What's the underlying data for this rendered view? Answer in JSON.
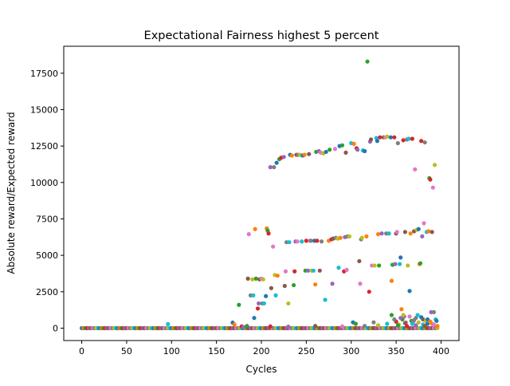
{
  "chart_data": {
    "type": "scatter",
    "title": "Expectational Fairness highest 5 percent",
    "xlabel": "Cycles",
    "ylabel": "Absolute reward/Expected reward",
    "xlim": [
      -20,
      420
    ],
    "ylim": [
      -850,
      19350
    ],
    "xticks": [
      0,
      50,
      100,
      150,
      200,
      250,
      300,
      350,
      400
    ],
    "yticks": [
      0,
      2500,
      5000,
      7500,
      10000,
      12500,
      15000,
      17500
    ],
    "xtick_labels": [
      "0",
      "50",
      "100",
      "150",
      "200",
      "250",
      "300",
      "350",
      "400"
    ],
    "ytick_labels": [
      "0",
      "2500",
      "5000",
      "7500",
      "10000",
      "12500",
      "15000",
      "17500"
    ],
    "grid": false,
    "legend": "none",
    "palette": [
      "#1f77b4",
      "#ff7f0e",
      "#2ca02c",
      "#d62728",
      "#9467bd",
      "#8c564b",
      "#e377c2",
      "#7f7f7f",
      "#bcbd22",
      "#17becf"
    ],
    "baseline": {
      "x_start": 0,
      "x_end": 396,
      "x_step": 2,
      "y": 0
    },
    "points": [
      [
        96,
        280
      ],
      [
        168,
        380
      ],
      [
        170,
        250
      ],
      [
        175,
        1600
      ],
      [
        178,
        120
      ],
      [
        180,
        80
      ],
      [
        185,
        3400
      ],
      [
        186,
        6450
      ],
      [
        188,
        2250
      ],
      [
        190,
        3350
      ],
      [
        191,
        2250
      ],
      [
        192,
        700
      ],
      [
        193,
        6800
      ],
      [
        194,
        3400
      ],
      [
        196,
        1350
      ],
      [
        197,
        1700
      ],
      [
        198,
        3350
      ],
      [
        200,
        3400
      ],
      [
        201,
        1700
      ],
      [
        202,
        3350
      ],
      [
        203,
        1700
      ],
      [
        205,
        2200
      ],
      [
        206,
        6850
      ],
      [
        207,
        6700
      ],
      [
        208,
        6500
      ],
      [
        210,
        11050
      ],
      [
        211,
        2750
      ],
      [
        213,
        5600
      ],
      [
        214,
        11050
      ],
      [
        215,
        3650
      ],
      [
        216,
        2250
      ],
      [
        217,
        11350
      ],
      [
        218,
        3600
      ],
      [
        220,
        11600
      ],
      [
        222,
        11700
      ],
      [
        225,
        11750
      ],
      [
        226,
        2900
      ],
      [
        227,
        3900
      ],
      [
        228,
        5900
      ],
      [
        230,
        1700
      ],
      [
        231,
        5900
      ],
      [
        232,
        11900
      ],
      [
        234,
        11850
      ],
      [
        236,
        2950
      ],
      [
        237,
        3900
      ],
      [
        238,
        5950
      ],
      [
        239,
        11900
      ],
      [
        240,
        5950
      ],
      [
        241,
        11900
      ],
      [
        243,
        11900
      ],
      [
        245,
        5950
      ],
      [
        246,
        11850
      ],
      [
        248,
        11900
      ],
      [
        249,
        3950
      ],
      [
        250,
        6000
      ],
      [
        252,
        3950
      ],
      [
        253,
        11950
      ],
      [
        254,
        6000
      ],
      [
        255,
        6000
      ],
      [
        256,
        3950
      ],
      [
        258,
        3950
      ],
      [
        259,
        6000
      ],
      [
        260,
        3000
      ],
      [
        261,
        12100
      ],
      [
        262,
        6000
      ],
      [
        264,
        12150
      ],
      [
        265,
        3950
      ],
      [
        266,
        12050
      ],
      [
        267,
        5950
      ],
      [
        269,
        12000
      ],
      [
        271,
        1950
      ],
      [
        272,
        12100
      ],
      [
        275,
        6000
      ],
      [
        276,
        12250
      ],
      [
        278,
        6100
      ],
      [
        279,
        3050
      ],
      [
        280,
        6150
      ],
      [
        282,
        12300
      ],
      [
        283,
        6200
      ],
      [
        285,
        6150
      ],
      [
        286,
        4150
      ],
      [
        287,
        12500
      ],
      [
        288,
        6200
      ],
      [
        290,
        12550
      ],
      [
        292,
        3900
      ],
      [
        293,
        6250
      ],
      [
        294,
        12050
      ],
      [
        295,
        4000
      ],
      [
        296,
        6300
      ],
      [
        298,
        6300
      ],
      [
        300,
        12700
      ],
      [
        302,
        400
      ],
      [
        303,
        12650
      ],
      [
        305,
        300
      ],
      [
        306,
        12350
      ],
      [
        307,
        12250
      ],
      [
        309,
        4600
      ],
      [
        310,
        3050
      ],
      [
        311,
        6100
      ],
      [
        312,
        6200
      ],
      [
        313,
        12200
      ],
      [
        315,
        12150
      ],
      [
        317,
        6300
      ],
      [
        318,
        18300
      ],
      [
        320,
        2500
      ],
      [
        321,
        12800
      ],
      [
        322,
        12950
      ],
      [
        323,
        4300
      ],
      [
        325,
        400
      ],
      [
        326,
        4300
      ],
      [
        328,
        13050
      ],
      [
        329,
        12850
      ],
      [
        330,
        6450
      ],
      [
        331,
        4300
      ],
      [
        332,
        13100
      ],
      [
        334,
        6500
      ],
      [
        336,
        13100
      ],
      [
        338,
        13100
      ],
      [
        339,
        6500
      ],
      [
        340,
        13150
      ],
      [
        342,
        6500
      ],
      [
        344,
        13100
      ],
      [
        345,
        3250
      ],
      [
        346,
        4350
      ],
      [
        348,
        13100
      ],
      [
        349,
        4400
      ],
      [
        350,
        6500
      ],
      [
        351,
        6600
      ],
      [
        352,
        12700
      ],
      [
        353,
        250
      ],
      [
        354,
        4400
      ],
      [
        355,
        4850
      ],
      [
        356,
        1300
      ],
      [
        357,
        600
      ],
      [
        358,
        12900
      ],
      [
        359,
        800
      ],
      [
        360,
        6600
      ],
      [
        361,
        400
      ],
      [
        362,
        12950
      ],
      [
        363,
        4300
      ],
      [
        364,
        13000
      ],
      [
        365,
        2550
      ],
      [
        366,
        6500
      ],
      [
        367,
        500
      ],
      [
        368,
        13000
      ],
      [
        369,
        450
      ],
      [
        370,
        6650
      ],
      [
        371,
        10900
      ],
      [
        372,
        700
      ],
      [
        373,
        6750
      ],
      [
        374,
        900
      ],
      [
        375,
        6800
      ],
      [
        376,
        4400
      ],
      [
        377,
        4450
      ],
      [
        378,
        12850
      ],
      [
        379,
        6300
      ],
      [
        380,
        600
      ],
      [
        381,
        7200
      ],
      [
        382,
        12750
      ],
      [
        383,
        500
      ],
      [
        384,
        6600
      ],
      [
        385,
        300
      ],
      [
        386,
        6650
      ],
      [
        387,
        10300
      ],
      [
        388,
        10200
      ],
      [
        389,
        1100
      ],
      [
        390,
        6600
      ],
      [
        391,
        9650
      ],
      [
        392,
        1100
      ],
      [
        393,
        11200
      ],
      [
        394,
        600
      ],
      [
        395,
        500
      ],
      [
        396,
        150
      ],
      [
        345,
        900
      ],
      [
        350,
        450
      ],
      [
        355,
        700
      ],
      [
        360,
        350
      ],
      [
        365,
        800
      ],
      [
        370,
        550
      ],
      [
        375,
        400
      ],
      [
        380,
        250
      ],
      [
        385,
        600
      ],
      [
        390,
        300
      ],
      [
        352,
        200
      ],
      [
        362,
        150
      ],
      [
        372,
        200
      ],
      [
        382,
        150
      ],
      [
        392,
        250
      ],
      [
        348,
        600
      ],
      [
        358,
        900
      ],
      [
        368,
        300
      ],
      [
        378,
        750
      ],
      [
        388,
        450
      ],
      [
        184,
        150
      ],
      [
        210,
        120
      ],
      [
        230,
        100
      ],
      [
        260,
        150
      ],
      [
        290,
        120
      ],
      [
        315,
        150
      ],
      [
        330,
        200
      ],
      [
        340,
        300
      ]
    ]
  }
}
